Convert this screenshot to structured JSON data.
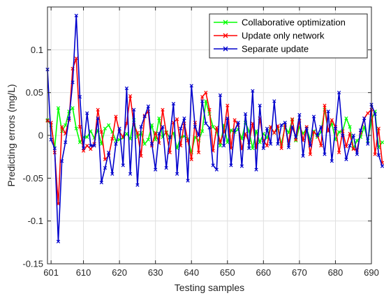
{
  "chart_data": {
    "type": "line",
    "title": "",
    "xlabel": "Testing samples",
    "ylabel": "Predicting errors (mg/L)",
    "xlim": [
      600,
      690
    ],
    "ylim": [
      -0.15,
      0.15
    ],
    "xticks": [
      601,
      610,
      620,
      630,
      640,
      650,
      660,
      670,
      680,
      690
    ],
    "yticks": [
      -0.15,
      -0.1,
      -0.05,
      0,
      0.05,
      0.1
    ],
    "ytick_labels": [
      "-0.15",
      "-0.1",
      "-0.05",
      "0",
      "0.05",
      "0.1"
    ],
    "grid": true,
    "legend_position": "top-right",
    "x_start": 600,
    "series": [
      {
        "name": "Collaborative optimization",
        "color": "#00ff00",
        "values": [
          0.018,
          0.012,
          -0.015,
          0.032,
          0.005,
          0.012,
          0.028,
          0.032,
          0.008,
          -0.008,
          -0.002,
          -0.002,
          0.005,
          -0.003,
          0.006,
          -0.01,
          0.008,
          0.012,
          0.004,
          -0.006,
          -0.005,
          -0.003,
          0.002,
          -0.004,
          0.018,
          -0.002,
          0.003,
          -0.01,
          -0.005,
          0.012,
          -0.005,
          0.02,
          -0.002,
          0.004,
          -0.003,
          0.003,
          -0.015,
          -0.002,
          -0.001,
          -0.004,
          -0.02,
          -0.002,
          -0.006,
          0.005,
          0.04,
          0.025,
          0.01,
          0.005,
          -0.012,
          0.012,
          -0.008,
          0.006,
          0.004,
          0.007,
          -0.004,
          0.015,
          0.005,
          -0.015,
          0.005,
          -0.008,
          0.002,
          -0.003,
          0.01,
          0.003,
          0.008,
          -0.01,
          0.01,
          0.003,
          0.018,
          -0.006,
          0.01,
          0.002,
          0.008,
          -0.005,
          0.005,
          -0.002,
          0.004,
          0.03,
          0.005,
          0.014,
          -0.005,
          0.004,
          0.005,
          0.02,
          0.01,
          -0.015,
          -0.006,
          -0.002,
          0.01,
          -0.006,
          0.018,
          0.028,
          -0.014,
          -0.008
        ]
      },
      {
        "name": "Update only network",
        "color": "#ff0000",
        "values": [
          0.017,
          0.015,
          -0.02,
          -0.08,
          0.01,
          0.002,
          0.018,
          0.078,
          0.09,
          0.01,
          -0.018,
          -0.012,
          -0.016,
          -0.01,
          0.03,
          0.004,
          -0.028,
          -0.024,
          -0.004,
          0.022,
          0.004,
          -0.002,
          0.014,
          0.046,
          0.012,
          0.003,
          -0.024,
          0.023,
          0.028,
          -0.012,
          0.003,
          -0.009,
          0.03,
          0.003,
          -0.02,
          0.015,
          0.019,
          -0.012,
          0.014,
          -0.006,
          -0.028,
          0.015,
          -0.02,
          0.045,
          0.05,
          0.03,
          -0.018,
          0.009,
          -0.008,
          0.004,
          0.035,
          -0.015,
          0.018,
          0.012,
          -0.016,
          0.002,
          -0.008,
          0.014,
          -0.015,
          0.02,
          -0.006,
          -0.012,
          0.01,
          0.003,
          0.011,
          -0.015,
          0.012,
          -0.009,
          0.019,
          -0.005,
          0.017,
          -0.006,
          0.01,
          -0.022,
          0.004,
          0.0,
          -0.012,
          0.035,
          0.005,
          0.018,
          0.01,
          -0.02,
          0.005,
          -0.013,
          0.002,
          -0.016,
          -0.017,
          0.003,
          0.02,
          0.026,
          0.03,
          -0.022,
          0.008,
          -0.032
        ]
      },
      {
        "name": "Separate update",
        "color": "#0000cc",
        "values": [
          0.077,
          -0.005,
          -0.015,
          -0.124,
          -0.03,
          -0.008,
          0.02,
          0.062,
          0.14,
          0.045,
          -0.015,
          0.026,
          -0.012,
          -0.012,
          0.02,
          -0.055,
          -0.038,
          -0.02,
          -0.045,
          -0.01,
          0.008,
          -0.035,
          0.055,
          -0.045,
          0.03,
          -0.058,
          0.01,
          0.022,
          0.034,
          -0.01,
          -0.04,
          0.002,
          0.01,
          -0.038,
          -0.002,
          0.037,
          -0.045,
          0.008,
          0.02,
          -0.053,
          0.058,
          0.01,
          0.0,
          0.04,
          0.014,
          0.009,
          -0.035,
          -0.04,
          0.047,
          -0.012,
          0.02,
          -0.035,
          0.006,
          0.015,
          -0.036,
          0.025,
          -0.015,
          0.052,
          -0.04,
          0.035,
          -0.015,
          0.008,
          -0.01,
          0.04,
          -0.01,
          0.012,
          0.015,
          -0.014,
          0.01,
          -0.002,
          0.024,
          -0.024,
          0.008,
          -0.012,
          0.022,
          0.0,
          0.01,
          -0.022,
          0.028,
          -0.03,
          0.008,
          0.05,
          0.0,
          -0.028,
          -0.012,
          0.0,
          -0.022,
          0.006,
          0.02,
          -0.01,
          0.036,
          0.025,
          -0.023,
          -0.036
        ]
      }
    ]
  }
}
